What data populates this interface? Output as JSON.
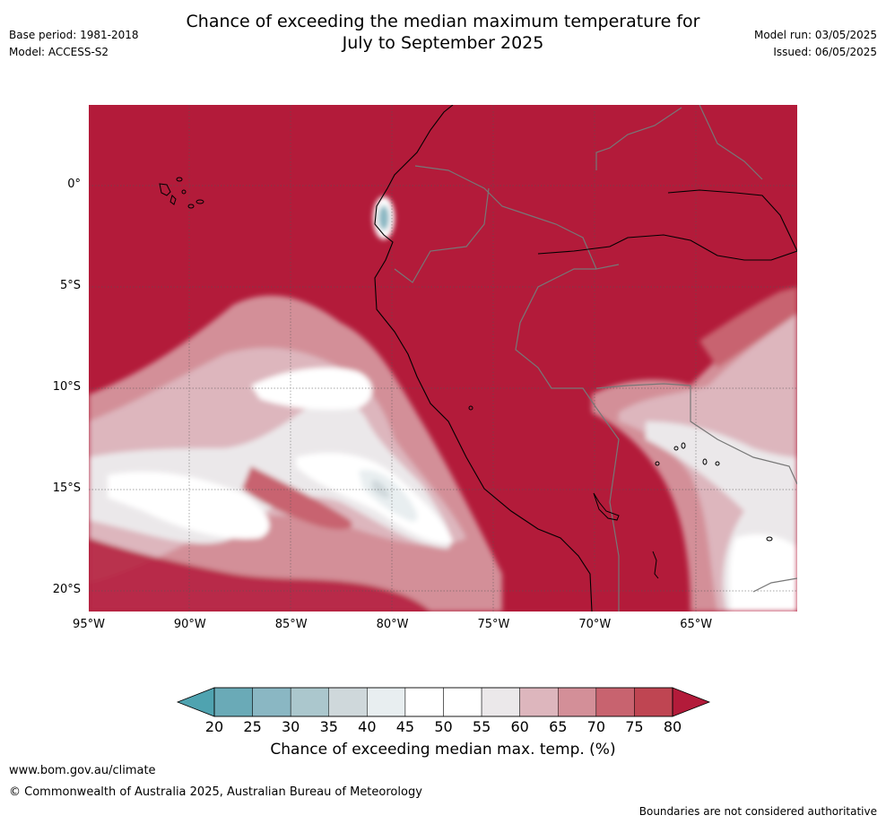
{
  "header": {
    "title_line1": "Chance of exceeding the median maximum temperature for",
    "title_line2": "July to September 2025",
    "base_period": "Base period: 1981-2018",
    "model": "Model: ACCESS-S2",
    "model_run": "Model run: 03/05/2025",
    "issued": "Issued: 06/05/2025"
  },
  "map": {
    "lon_range": [
      -95,
      -60
    ],
    "lat_range": [
      -21,
      4
    ],
    "lat_ticks": [
      {
        "value": 0,
        "label": "0°"
      },
      {
        "value": -5,
        "label": "5°S"
      },
      {
        "value": -10,
        "label": "10°S"
      },
      {
        "value": -15,
        "label": "15°S"
      },
      {
        "value": -20,
        "label": "20°S"
      }
    ],
    "lon_ticks": [
      {
        "value": -95,
        "label": "95°W"
      },
      {
        "value": -90,
        "label": "90°W"
      },
      {
        "value": -85,
        "label": "85°W"
      },
      {
        "value": -80,
        "label": "80°W"
      },
      {
        "value": -75,
        "label": "75°W"
      },
      {
        "value": -70,
        "label": "70°W"
      },
      {
        "value": -65,
        "label": "65°W"
      }
    ],
    "background_color": "#b31b3a"
  },
  "colorbar": {
    "title": "Chance of exceeding median max. temp. (%)",
    "labels": [
      "20",
      "25",
      "30",
      "35",
      "40",
      "45",
      "50",
      "55",
      "60",
      "65",
      "70",
      "75",
      "80"
    ],
    "colors": [
      "#6aaab7",
      "#8ab7c3",
      "#abc7cd",
      "#cfd8db",
      "#e8eef0",
      "#ffffff",
      "#ffffff",
      "#ebe8ea",
      "#ddb6bd",
      "#d38f98",
      "#c8636f",
      "#bf4552"
    ],
    "under_color": "#4fa3b0",
    "over_color": "#b31b3a"
  },
  "footer": {
    "url": "www.bom.gov.au/climate",
    "copyright": "© Commonwealth of Australia 2025, Australian Bureau of Meteorology",
    "disclaimer": "Boundaries are not considered authoritative"
  }
}
